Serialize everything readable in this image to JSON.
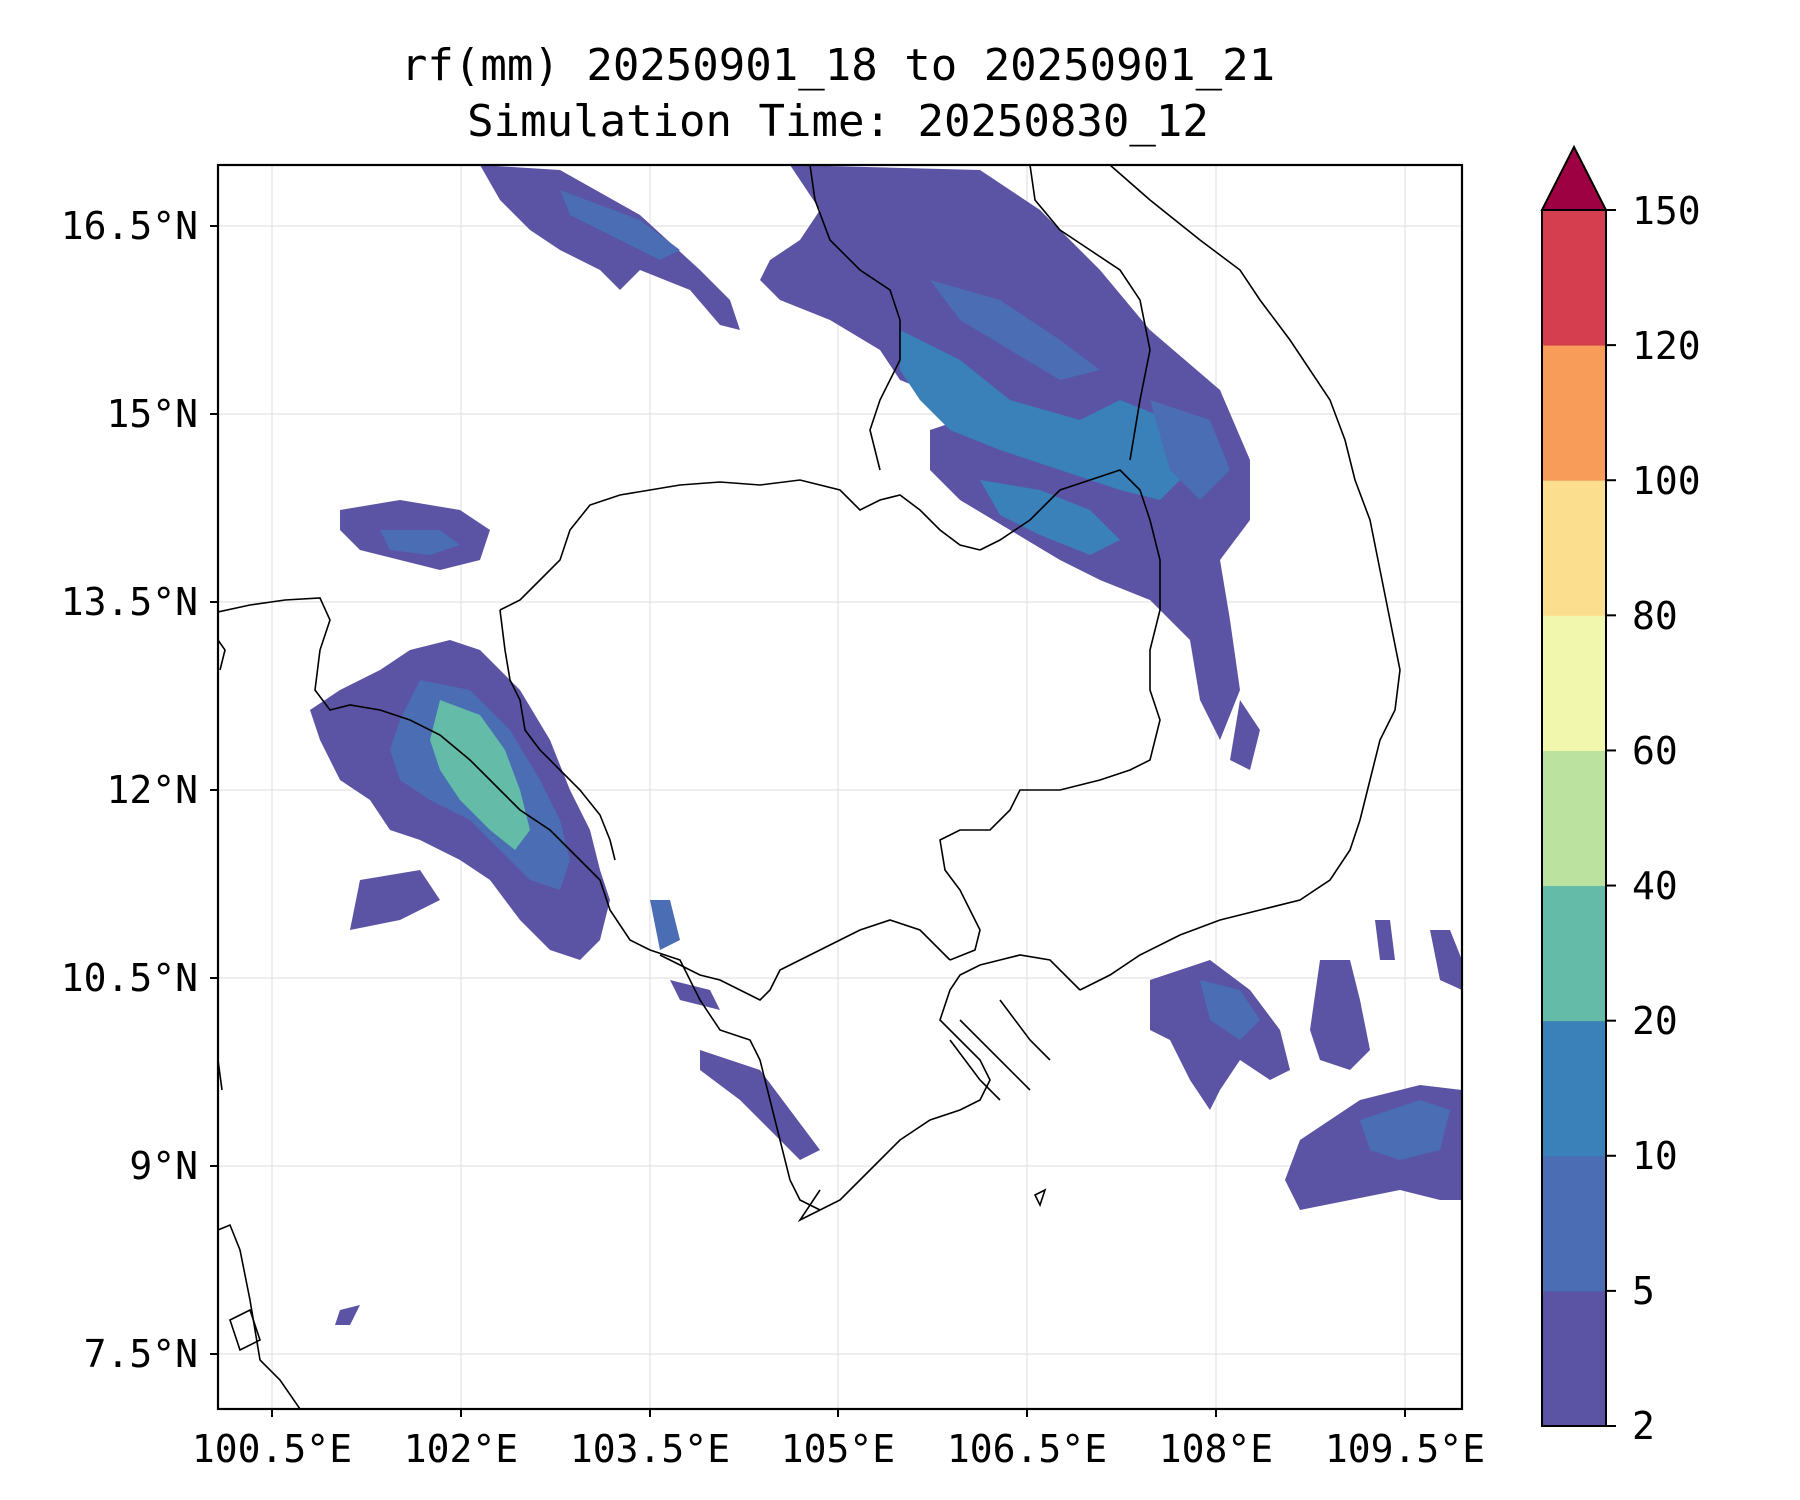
{
  "map": {
    "title_line1": "rf(mm) 20250901_18 to 20250901_21",
    "title_line2": "Simulation Time: 20250830_12",
    "lon_ticks": [
      "100.5°E",
      "102°E",
      "103.5°E",
      "105°E",
      "106.5°E",
      "108°E",
      "109.5°E"
    ],
    "lat_ticks": [
      "16.5°N",
      "15°N",
      "13.5°N",
      "12°N",
      "10.5°N",
      "9°N",
      "7.5°N"
    ],
    "gridlines": true
  },
  "colorbar": {
    "levels": [
      "2",
      "5",
      "10",
      "20",
      "40",
      "60",
      "80",
      "100",
      "120",
      "150"
    ],
    "colors": [
      "#5b53a4",
      "#4a6db3",
      "#3a80b9",
      "#63bba8",
      "#bbe29f",
      "#f1f8ad",
      "#fbdf8e",
      "#f89d59",
      "#d53e4f",
      "#9e0142"
    ],
    "extend": "max"
  }
}
